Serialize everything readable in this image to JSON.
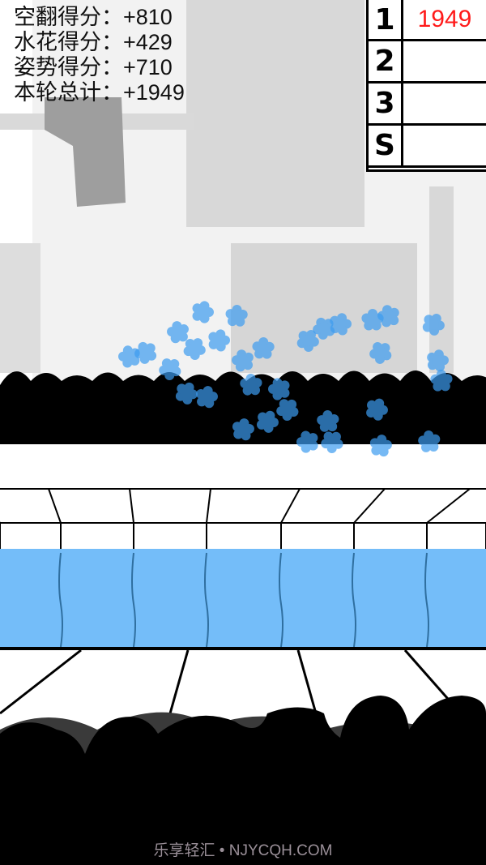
{
  "score_panel": {
    "lines": [
      {
        "label": "空翻得分：",
        "value": "+810"
      },
      {
        "label": "水花得分：",
        "value": "+429"
      },
      {
        "label": "姿势得分：",
        "value": "+710"
      },
      {
        "label": "本轮总计：",
        "value": "+1949"
      }
    ]
  },
  "scoreboard": {
    "rows": [
      {
        "label": "1",
        "value": "1949"
      },
      {
        "label": "2",
        "value": ""
      },
      {
        "label": "3",
        "value": ""
      },
      {
        "label": "S",
        "value": ""
      }
    ],
    "value_color": "#ff1a1a"
  },
  "colors": {
    "water": "#74bdf9",
    "splash": "#3d9cf0",
    "crowd": "#000000"
  },
  "watermark": "乐享轻汇 • NJYCQH.COM"
}
